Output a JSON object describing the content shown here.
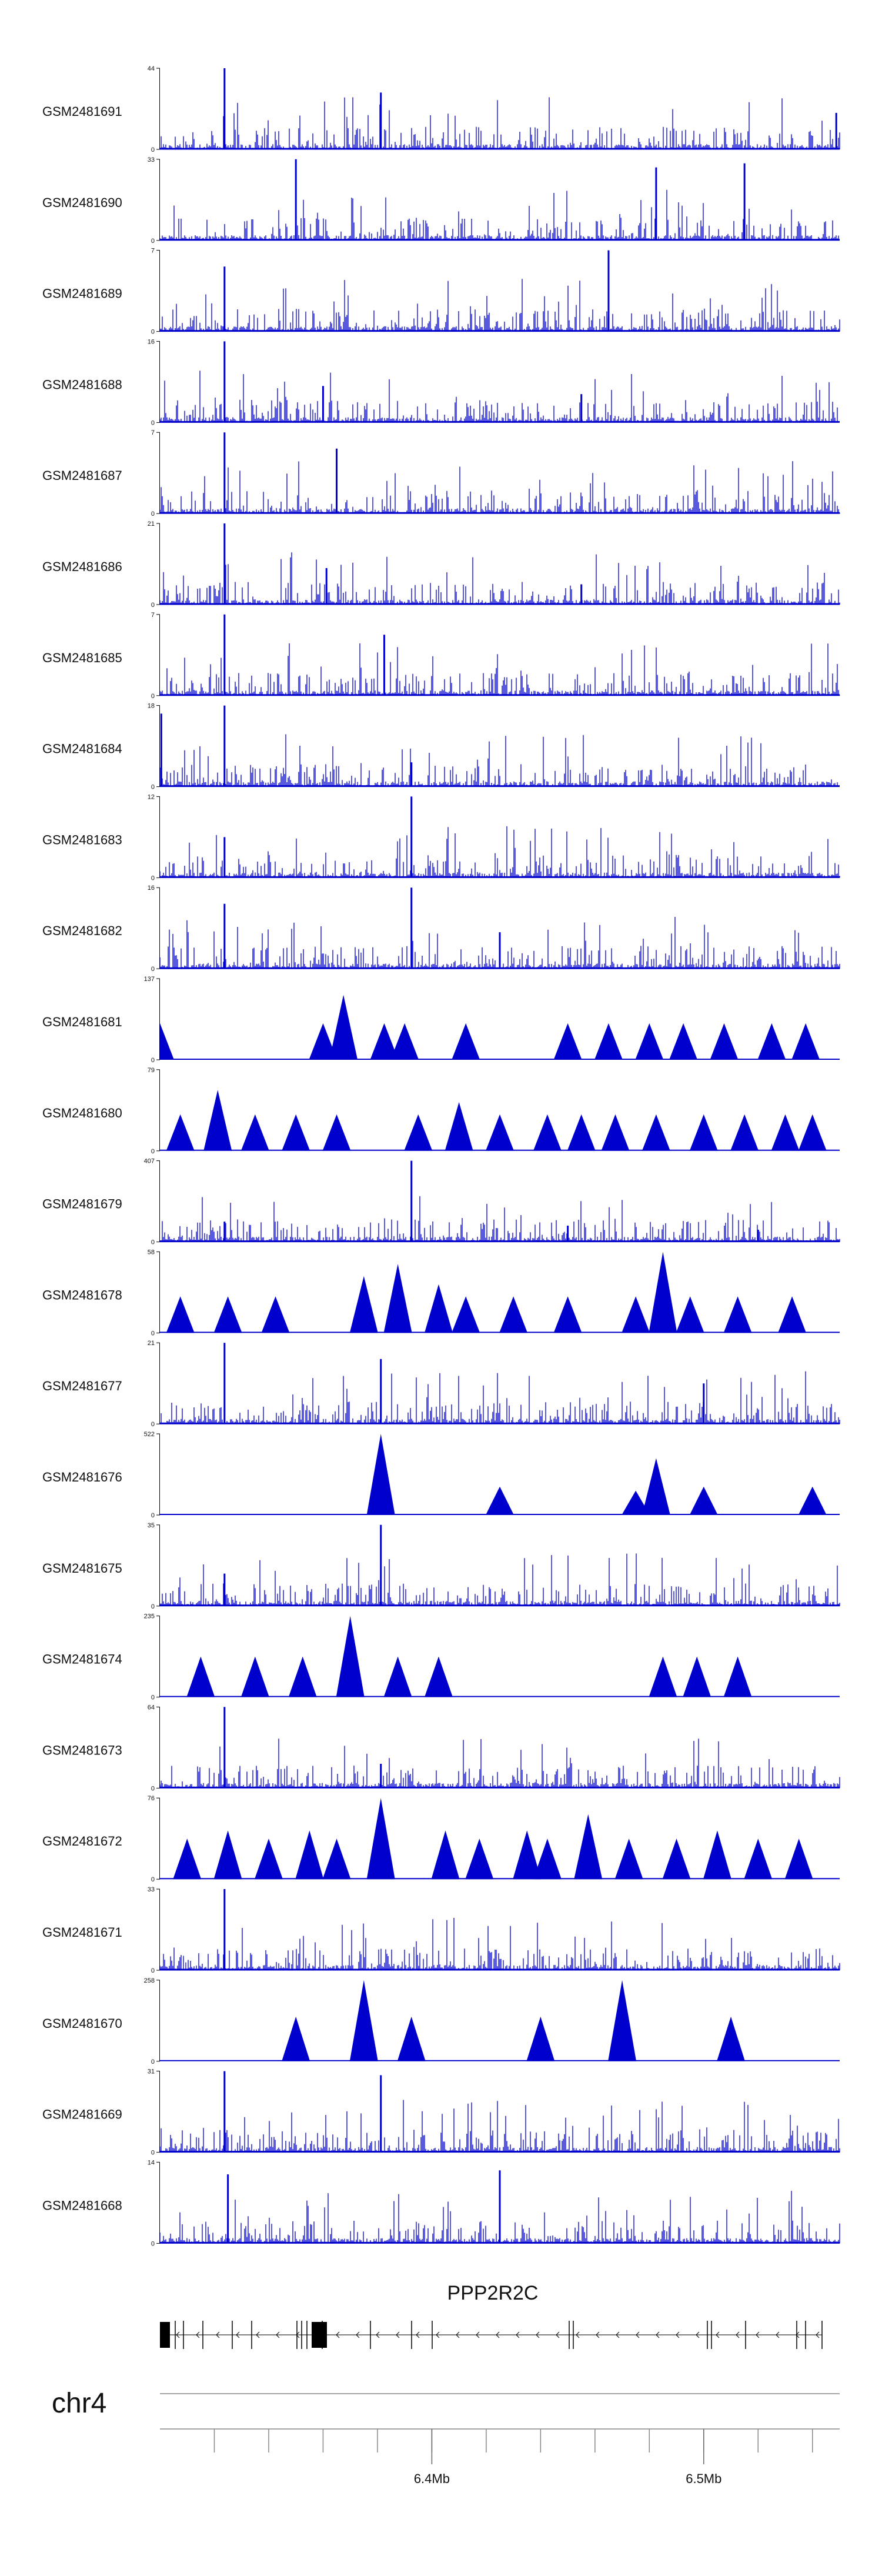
{
  "chart_data": {
    "type": "genome-tracks",
    "chromosome": "chr4",
    "region": [
      6300000,
      6550000
    ],
    "signal_color": "#0000cc",
    "gene_color": "#000000",
    "gene": {
      "name": "PPP2R2C",
      "strand": "-"
    },
    "axis": {
      "ticks": [
        6320000,
        6340000,
        6360000,
        6380000,
        6400000,
        6420000,
        6440000,
        6460000,
        6480000,
        6500000,
        6520000,
        6540000
      ],
      "labels": [
        {
          "position": 6400000,
          "label": "6.4Mb"
        },
        {
          "position": 6500000,
          "label": "6.5Mb"
        }
      ]
    },
    "tracks": [
      {
        "name": "GSM2481691",
        "ymax": "44",
        "ymin": "0",
        "style": "dense",
        "peaks": [
          [
            0.095,
            1.0
          ],
          [
            0.325,
            0.7
          ],
          [
            0.995,
            0.45
          ]
        ]
      },
      {
        "name": "GSM2481690",
        "ymax": "33",
        "ymin": "0",
        "style": "dense",
        "peaks": [
          [
            0.2,
            1.0
          ],
          [
            0.73,
            0.9
          ],
          [
            0.86,
            0.95
          ]
        ]
      },
      {
        "name": "GSM2481689",
        "ymax": "7",
        "ymin": "0",
        "style": "dense",
        "peaks": [
          [
            0.66,
            1.0
          ],
          [
            0.095,
            0.8
          ]
        ]
      },
      {
        "name": "GSM2481688",
        "ymax": "16",
        "ymin": "0",
        "style": "dense",
        "peaks": [
          [
            0.095,
            1.0
          ],
          [
            0.24,
            0.45
          ],
          [
            0.62,
            0.35
          ]
        ]
      },
      {
        "name": "GSM2481687",
        "ymax": "7",
        "ymin": "0",
        "style": "dense",
        "peaks": [
          [
            0.095,
            1.0
          ],
          [
            0.26,
            0.8
          ]
        ]
      },
      {
        "name": "GSM2481686",
        "ymax": "21",
        "ymin": "0",
        "style": "dense",
        "peaks": [
          [
            0.095,
            1.0
          ],
          [
            0.245,
            0.45
          ],
          [
            0.62,
            0.25
          ]
        ]
      },
      {
        "name": "GSM2481685",
        "ymax": "7",
        "ymin": "0",
        "style": "dense",
        "peaks": [
          [
            0.095,
            1.0
          ],
          [
            0.33,
            0.75
          ]
        ]
      },
      {
        "name": "GSM2481684",
        "ymax": "18",
        "ymin": "0",
        "style": "dense",
        "peaks": [
          [
            0.095,
            1.0
          ],
          [
            0.002,
            0.9
          ],
          [
            0.37,
            0.3
          ]
        ]
      },
      {
        "name": "GSM2481683",
        "ymax": "12",
        "ymin": "0",
        "style": "dense",
        "peaks": [
          [
            0.37,
            1.0
          ],
          [
            0.095,
            0.5
          ]
        ]
      },
      {
        "name": "GSM2481682",
        "ymax": "16",
        "ymin": "0",
        "style": "dense",
        "peaks": [
          [
            0.37,
            1.0
          ],
          [
            0.095,
            0.8
          ],
          [
            0.5,
            0.45
          ]
        ]
      },
      {
        "name": "GSM2481681",
        "ymax": "137",
        "ymin": "0",
        "style": "triangles",
        "peaks": [
          [
            0.0,
            0.45
          ],
          [
            0.24,
            0.45
          ],
          [
            0.27,
            0.8
          ],
          [
            0.33,
            0.45
          ],
          [
            0.36,
            0.45
          ],
          [
            0.45,
            0.45
          ],
          [
            0.6,
            0.45
          ],
          [
            0.66,
            0.45
          ],
          [
            0.72,
            0.45
          ],
          [
            0.77,
            0.45
          ],
          [
            0.83,
            0.45
          ],
          [
            0.9,
            0.45
          ],
          [
            0.95,
            0.45
          ]
        ]
      },
      {
        "name": "GSM2481680",
        "ymax": "79",
        "ymin": "0",
        "style": "triangles",
        "peaks": [
          [
            0.03,
            0.45
          ],
          [
            0.085,
            0.75
          ],
          [
            0.14,
            0.45
          ],
          [
            0.2,
            0.45
          ],
          [
            0.26,
            0.45
          ],
          [
            0.38,
            0.45
          ],
          [
            0.44,
            0.6
          ],
          [
            0.5,
            0.45
          ],
          [
            0.57,
            0.45
          ],
          [
            0.62,
            0.45
          ],
          [
            0.67,
            0.45
          ],
          [
            0.73,
            0.45
          ],
          [
            0.8,
            0.45
          ],
          [
            0.86,
            0.45
          ],
          [
            0.92,
            0.45
          ],
          [
            0.96,
            0.45
          ]
        ]
      },
      {
        "name": "GSM2481679",
        "ymax": "407",
        "ymin": "0",
        "style": "dense",
        "peaks": [
          [
            0.37,
            1.0
          ],
          [
            0.095,
            0.25
          ],
          [
            0.6,
            0.2
          ],
          [
            0.88,
            0.15
          ]
        ]
      },
      {
        "name": "GSM2481678",
        "ymax": "58",
        "ymin": "0",
        "style": "triangles",
        "peaks": [
          [
            0.03,
            0.45
          ],
          [
            0.1,
            0.45
          ],
          [
            0.17,
            0.45
          ],
          [
            0.3,
            0.7
          ],
          [
            0.35,
            0.85
          ],
          [
            0.41,
            0.6
          ],
          [
            0.45,
            0.45
          ],
          [
            0.52,
            0.45
          ],
          [
            0.6,
            0.45
          ],
          [
            0.7,
            0.45
          ],
          [
            0.78,
            0.45
          ],
          [
            0.74,
            1.0
          ],
          [
            0.85,
            0.45
          ],
          [
            0.93,
            0.45
          ]
        ]
      },
      {
        "name": "GSM2481677",
        "ymax": "21",
        "ymin": "0",
        "style": "dense",
        "peaks": [
          [
            0.095,
            1.0
          ],
          [
            0.325,
            0.8
          ],
          [
            0.8,
            0.5
          ]
        ]
      },
      {
        "name": "GSM2481676",
        "ymax": "522",
        "ymin": "0",
        "style": "triangles",
        "peaks": [
          [
            0.325,
            1.0
          ],
          [
            0.5,
            0.35
          ],
          [
            0.7,
            0.3
          ],
          [
            0.73,
            0.7
          ],
          [
            0.8,
            0.35
          ],
          [
            0.96,
            0.35
          ]
        ]
      },
      {
        "name": "GSM2481675",
        "ymax": "35",
        "ymin": "0",
        "style": "dense",
        "peaks": [
          [
            0.325,
            1.0
          ],
          [
            0.095,
            0.4
          ]
        ]
      },
      {
        "name": "GSM2481674",
        "ymax": "235",
        "ymin": "0",
        "style": "triangles",
        "peaks": [
          [
            0.06,
            0.5
          ],
          [
            0.14,
            0.5
          ],
          [
            0.21,
            0.5
          ],
          [
            0.28,
            1.0
          ],
          [
            0.35,
            0.5
          ],
          [
            0.41,
            0.5
          ],
          [
            0.74,
            0.5
          ],
          [
            0.79,
            0.5
          ],
          [
            0.85,
            0.5
          ]
        ]
      },
      {
        "name": "GSM2481673",
        "ymax": "64",
        "ymin": "0",
        "style": "dense",
        "peaks": [
          [
            0.095,
            1.0
          ],
          [
            0.325,
            0.3
          ]
        ]
      },
      {
        "name": "GSM2481672",
        "ymax": "76",
        "ymin": "0",
        "style": "triangles",
        "peaks": [
          [
            0.04,
            0.5
          ],
          [
            0.1,
            0.6
          ],
          [
            0.16,
            0.5
          ],
          [
            0.22,
            0.6
          ],
          [
            0.26,
            0.5
          ],
          [
            0.325,
            1.0
          ],
          [
            0.42,
            0.6
          ],
          [
            0.47,
            0.5
          ],
          [
            0.54,
            0.6
          ],
          [
            0.57,
            0.5
          ],
          [
            0.63,
            0.8
          ],
          [
            0.69,
            0.5
          ],
          [
            0.76,
            0.5
          ],
          [
            0.82,
            0.6
          ],
          [
            0.88,
            0.5
          ],
          [
            0.94,
            0.5
          ]
        ]
      },
      {
        "name": "GSM2481671",
        "ymax": "33",
        "ymin": "0",
        "style": "dense",
        "peaks": [
          [
            0.095,
            1.0
          ]
        ]
      },
      {
        "name": "GSM2481670",
        "ymax": "258",
        "ymin": "0",
        "style": "triangles",
        "peaks": [
          [
            0.2,
            0.55
          ],
          [
            0.3,
            1.0
          ],
          [
            0.37,
            0.55
          ],
          [
            0.56,
            0.55
          ],
          [
            0.68,
            1.0
          ],
          [
            0.84,
            0.55
          ]
        ]
      },
      {
        "name": "GSM2481669",
        "ymax": "31",
        "ymin": "0",
        "style": "dense",
        "peaks": [
          [
            0.095,
            1.0
          ],
          [
            0.325,
            0.95
          ]
        ]
      },
      {
        "name": "GSM2481668",
        "ymax": "14",
        "ymin": "0",
        "style": "dense",
        "peaks": [
          [
            0.1,
            0.85
          ],
          [
            0.5,
            0.9
          ]
        ]
      }
    ]
  }
}
